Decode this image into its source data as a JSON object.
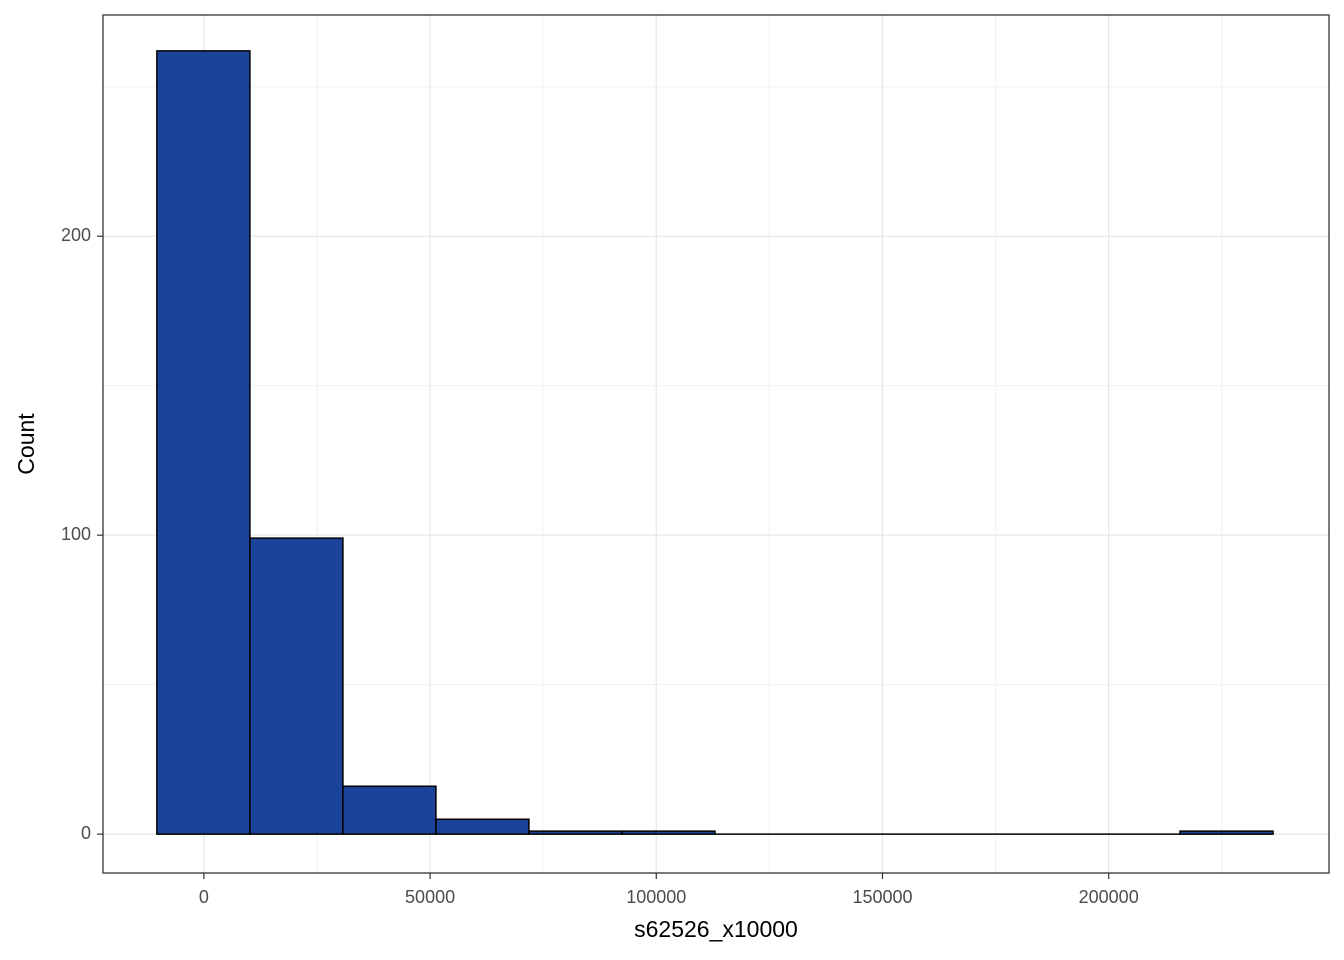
{
  "chart_data": {
    "type": "histogram",
    "x_label": "s62526_x10000",
    "y_label": "Count",
    "bins": [
      -10390,
      10170,
      30730,
      51290,
      71850,
      92410,
      112970,
      133530,
      154090,
      174650,
      195210,
      215770,
      236330
    ],
    "values": [
      262,
      99,
      16,
      5,
      1,
      1,
      0,
      0,
      0,
      0,
      0,
      1
    ],
    "color": "#1a4399",
    "edge_color": "#000000",
    "xlim": [
      -22300,
      248700
    ],
    "xticks": [
      0,
      50000,
      100000,
      150000,
      200000
    ],
    "xminor": [
      25000,
      75000,
      125000,
      175000,
      225000
    ],
    "ylim": [
      -13,
      274
    ],
    "yticks": [
      0,
      100,
      200
    ],
    "yminor": [
      50,
      150,
      250
    ],
    "grid": true
  }
}
